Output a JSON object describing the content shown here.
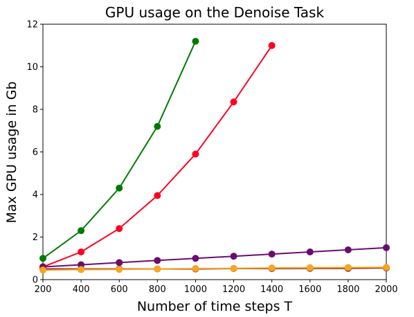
{
  "chart_data": {
    "type": "line",
    "title": "GPU usage on the Denoise Task",
    "xlabel": "Number of time steps T",
    "ylabel": "Max GPU usage in Gb",
    "xlim": [
      200,
      2000
    ],
    "ylim": [
      0,
      12
    ],
    "xticks": [
      200,
      400,
      600,
      800,
      1000,
      1200,
      1400,
      1600,
      1800,
      2000
    ],
    "yticks": [
      0,
      2,
      4,
      6,
      8,
      10,
      12
    ],
    "grid": false,
    "legend": "none",
    "series": [
      {
        "color": "#007a00",
        "x": [
          200,
          400,
          600,
          800,
          1000
        ],
        "y": [
          1.0,
          2.3,
          4.3,
          7.2,
          11.2
        ]
      },
      {
        "color": "#ff0022",
        "x": [
          200,
          400,
          600,
          800,
          1000,
          1200,
          1400
        ],
        "y": [
          0.6,
          1.3,
          2.4,
          3.95,
          5.9,
          8.35,
          11.0
        ]
      },
      {
        "color": "#6a0d6e",
        "x": [
          200,
          400,
          600,
          800,
          1000,
          1200,
          1400,
          1600,
          1800,
          2000
        ],
        "y": [
          0.6,
          0.7,
          0.8,
          0.9,
          1.0,
          1.1,
          1.2,
          1.3,
          1.4,
          1.5
        ]
      },
      {
        "color": "#8b1a1a",
        "x": [
          200,
          400,
          600,
          800,
          1000,
          1200,
          1400,
          1600,
          1800,
          2000
        ],
        "y": [
          0.5,
          0.5,
          0.5,
          0.5,
          0.5,
          0.52,
          0.52,
          0.53,
          0.53,
          0.55
        ]
      },
      {
        "color": "#f5a623",
        "x": [
          200,
          400,
          600,
          800,
          1000,
          1200,
          1400,
          1600,
          1800,
          2000
        ],
        "y": [
          0.45,
          0.47,
          0.48,
          0.5,
          0.52,
          0.53,
          0.55,
          0.56,
          0.57,
          0.58
        ]
      }
    ]
  }
}
